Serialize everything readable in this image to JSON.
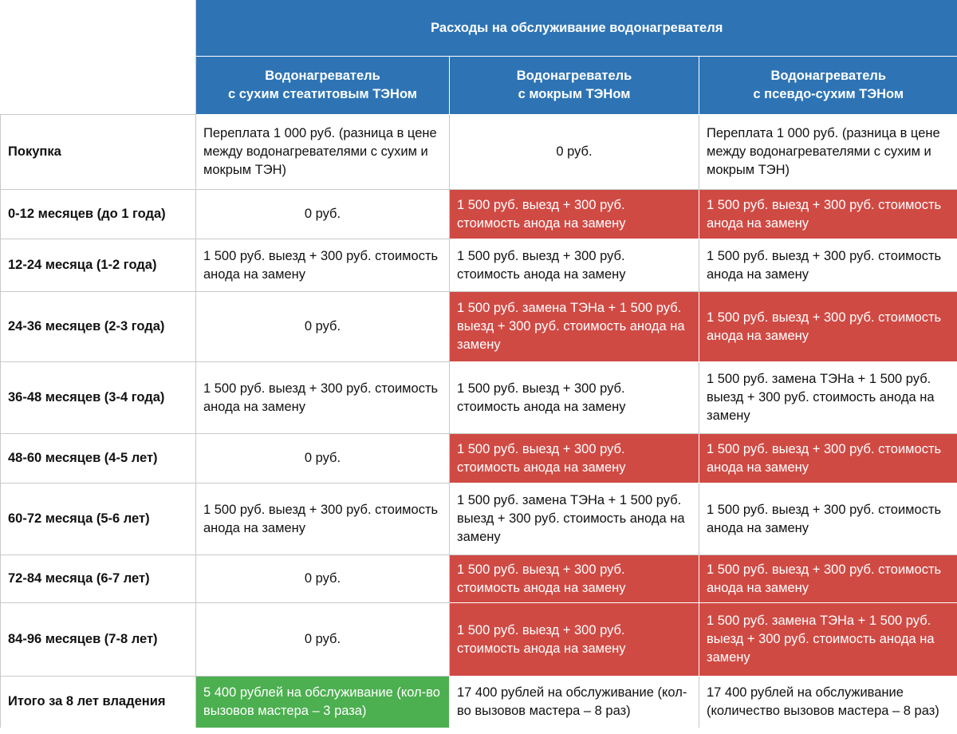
{
  "title": "Расходы на обслуживание водонагревателя",
  "columns": [
    "Водонагреватель\nс сухим стеатитовым ТЭНом",
    "Водонагреватель\nс мокрым ТЭНом",
    "Водонагреватель\nс псевдо-сухим ТЭНом"
  ],
  "colors": {
    "header": "#2e74b5",
    "highlight_bad": "#d04a44",
    "highlight_good": "#4caf50"
  },
  "rows": [
    {
      "label": "Покупка",
      "cells": [
        {
          "text": "Переплата 1 000 руб. (разница в цене между водонагревателями с сухим и мокрым ТЭН)",
          "highlight": "none",
          "align": "left"
        },
        {
          "text": "0 руб.",
          "highlight": "none",
          "align": "center"
        },
        {
          "text": "Переплата 1 000 руб. (разница в цене между водонагревателями с сухим и мокрым ТЭН)",
          "highlight": "none",
          "align": "left"
        }
      ]
    },
    {
      "label": "0-12 месяцев (до 1 года)",
      "cells": [
        {
          "text": "0 руб.",
          "highlight": "none",
          "align": "center"
        },
        {
          "text": "1 500 руб. выезд + 300 руб. стоимость анода на замену",
          "highlight": "red",
          "align": "left"
        },
        {
          "text": "1 500 руб. выезд + 300 руб. стоимость анода на замену",
          "highlight": "red",
          "align": "left"
        }
      ]
    },
    {
      "label": "12-24 месяца (1-2 года)",
      "cells": [
        {
          "text": "1 500 руб. выезд + 300 руб. стоимость анода на замену",
          "highlight": "none",
          "align": "left"
        },
        {
          "text": "1 500 руб. выезд + 300 руб. стоимость анода на замену",
          "highlight": "none",
          "align": "left"
        },
        {
          "text": "1 500 руб. выезд + 300 руб. стоимость анода на замену",
          "highlight": "none",
          "align": "left"
        }
      ]
    },
    {
      "label": "24-36 месяцев (2-3 года)",
      "cells": [
        {
          "text": "0 руб.",
          "highlight": "none",
          "align": "center"
        },
        {
          "text": "1 500 руб. замена ТЭНа + 1 500 руб. выезд + 300 руб. стоимость анода на замену",
          "highlight": "red",
          "align": "left"
        },
        {
          "text": "1 500 руб. выезд + 300 руб. стоимость анода на замену",
          "highlight": "red",
          "align": "left"
        }
      ]
    },
    {
      "label": "36-48 месяцев (3-4 года)",
      "cells": [
        {
          "text": "1 500 руб. выезд + 300 руб. стоимость анода на замену",
          "highlight": "none",
          "align": "left"
        },
        {
          "text": "1 500 руб. выезд + 300 руб. стоимость анода на замену",
          "highlight": "none",
          "align": "left"
        },
        {
          "text": "1 500 руб. замена ТЭНа + 1 500 руб. выезд + 300 руб. стоимость анода на замену",
          "highlight": "none",
          "align": "left"
        }
      ]
    },
    {
      "label": "48-60 месяцев (4-5 лет)",
      "cells": [
        {
          "text": "0 руб.",
          "highlight": "none",
          "align": "center"
        },
        {
          "text": "1 500 руб. выезд + 300 руб. стоимость анода на замену",
          "highlight": "red",
          "align": "left"
        },
        {
          "text": "1 500 руб. выезд + 300 руб. стоимость анода на замену",
          "highlight": "red",
          "align": "left"
        }
      ]
    },
    {
      "label": "60-72 месяца (5-6 лет)",
      "cells": [
        {
          "text": "1 500 руб. выезд + 300 руб. стоимость анода на замену",
          "highlight": "none",
          "align": "left"
        },
        {
          "text": "1 500 руб. замена ТЭНа + 1 500 руб. выезд + 300 руб. стоимость анода на замену",
          "highlight": "none",
          "align": "left"
        },
        {
          "text": "1 500 руб. выезд + 300 руб. стоимость анода на замену",
          "highlight": "none",
          "align": "left"
        }
      ]
    },
    {
      "label": "72-84 месяца (6-7 лет)",
      "cells": [
        {
          "text": "0 руб.",
          "highlight": "none",
          "align": "center"
        },
        {
          "text": "1 500 руб. выезд + 300 руб. стоимость анода на замену",
          "highlight": "red",
          "align": "left"
        },
        {
          "text": "1 500 руб. выезд + 300 руб. стоимость анода на замену",
          "highlight": "red",
          "align": "left"
        }
      ]
    },
    {
      "label": "84-96 месяцев (7-8 лет)",
      "cells": [
        {
          "text": "0 руб.",
          "highlight": "none",
          "align": "center"
        },
        {
          "text": "1 500 руб. выезд + 300 руб. стоимость анода на замену",
          "highlight": "red",
          "align": "left"
        },
        {
          "text": "1 500 руб. замена ТЭНа + 1 500 руб. выезд + 300 руб. стоимость анода на замену",
          "highlight": "red",
          "align": "left"
        }
      ]
    },
    {
      "label": "Итого за 8 лет владения",
      "cells": [
        {
          "text": "5 400 рублей на обслуживание (кол-во вызовов мастера – 3 раза)",
          "highlight": "green",
          "align": "left"
        },
        {
          "text": "17 400 рублей на обслуживание (кол-во вызовов мастера – 8 раз)",
          "highlight": "none",
          "align": "left"
        },
        {
          "text": "17 400 рублей на обслуживание (количество вызовов мастера – 8 раз)",
          "highlight": "none",
          "align": "left"
        }
      ]
    }
  ]
}
